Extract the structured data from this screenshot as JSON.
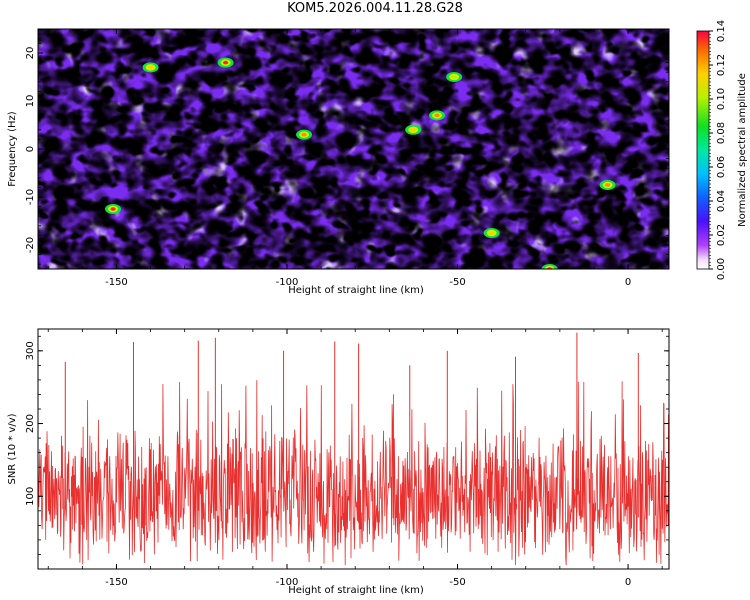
{
  "title": "KOM5.2026.004.11.28.G28",
  "chart_data": [
    {
      "type": "heatmap",
      "title": "KOM5.2026.004.11.28.G28",
      "xlabel": "Height of straight line (km)",
      "ylabel": "Frequency (Hz)",
      "xlim": [
        -173,
        12
      ],
      "ylim": [
        -25,
        25
      ],
      "xticks": [
        -150,
        -100,
        -50,
        0
      ],
      "yticks": [
        -20,
        -10,
        0,
        10,
        20
      ],
      "xtick_labels": [
        "-150",
        "-100",
        "-50",
        "0"
      ],
      "ytick_labels": [
        "-20",
        "-10",
        "0",
        "10",
        "20"
      ],
      "colorbar": {
        "label": "Normalized spectral amplitude",
        "range": [
          0,
          0.14
        ],
        "ticks": [
          0.0,
          0.02,
          0.04,
          0.06,
          0.08,
          0.1,
          0.12,
          0.14
        ],
        "tick_labels": [
          "0.00",
          "0.02",
          "0.04",
          "0.06",
          "0.08",
          "0.10",
          "0.12",
          "0.14"
        ]
      },
      "hotspots": [
        {
          "x": -151,
          "y": -12.5,
          "value": 0.13
        },
        {
          "x": -118,
          "y": 18.0,
          "value": 0.12
        },
        {
          "x": -23,
          "y": -25,
          "value": 0.12
        },
        {
          "x": -6,
          "y": -7.5,
          "value": 0.11
        },
        {
          "x": -56,
          "y": 7.0,
          "value": 0.11
        },
        {
          "x": -95,
          "y": 3.0,
          "value": 0.1
        },
        {
          "x": -63,
          "y": 4.0,
          "value": 0.09
        },
        {
          "x": -40,
          "y": -17.5,
          "value": 0.09
        },
        {
          "x": -140,
          "y": 17.0,
          "value": 0.09
        },
        {
          "x": -51,
          "y": 15.0,
          "value": 0.08
        }
      ],
      "background_level": "noise ~0.02–0.05 throughout"
    },
    {
      "type": "line",
      "xlabel": "Height of straight line (km)",
      "ylabel": "SNR (10 * v/v)",
      "xlim": [
        -173,
        12
      ],
      "ylim": [
        0,
        330
      ],
      "xticks": [
        -150,
        -100,
        -50,
        0
      ],
      "yticks": [
        100,
        200,
        300
      ],
      "xtick_labels": [
        "-150",
        "-100",
        "-50",
        "0"
      ],
      "ytick_labels": [
        "100",
        "200",
        "300"
      ],
      "series": [
        {
          "name": "SNR",
          "color": "#e8302f",
          "description": "dense noisy trace, baseline ~100, range ~0–325",
          "peaks": [
            {
              "x": -15,
              "y": 325
            },
            {
              "x": -121,
              "y": 318
            },
            {
              "x": -145,
              "y": 312
            },
            {
              "x": -126,
              "y": 314
            },
            {
              "x": -86,
              "y": 313
            },
            {
              "x": -79,
              "y": 310
            },
            {
              "x": -101,
              "y": 300
            },
            {
              "x": -53,
              "y": 300
            },
            {
              "x": -33,
              "y": 292
            },
            {
              "x": 3,
              "y": 297
            },
            {
              "x": -165,
              "y": 285
            },
            {
              "x": -64,
              "y": 280
            }
          ]
        }
      ]
    }
  ]
}
